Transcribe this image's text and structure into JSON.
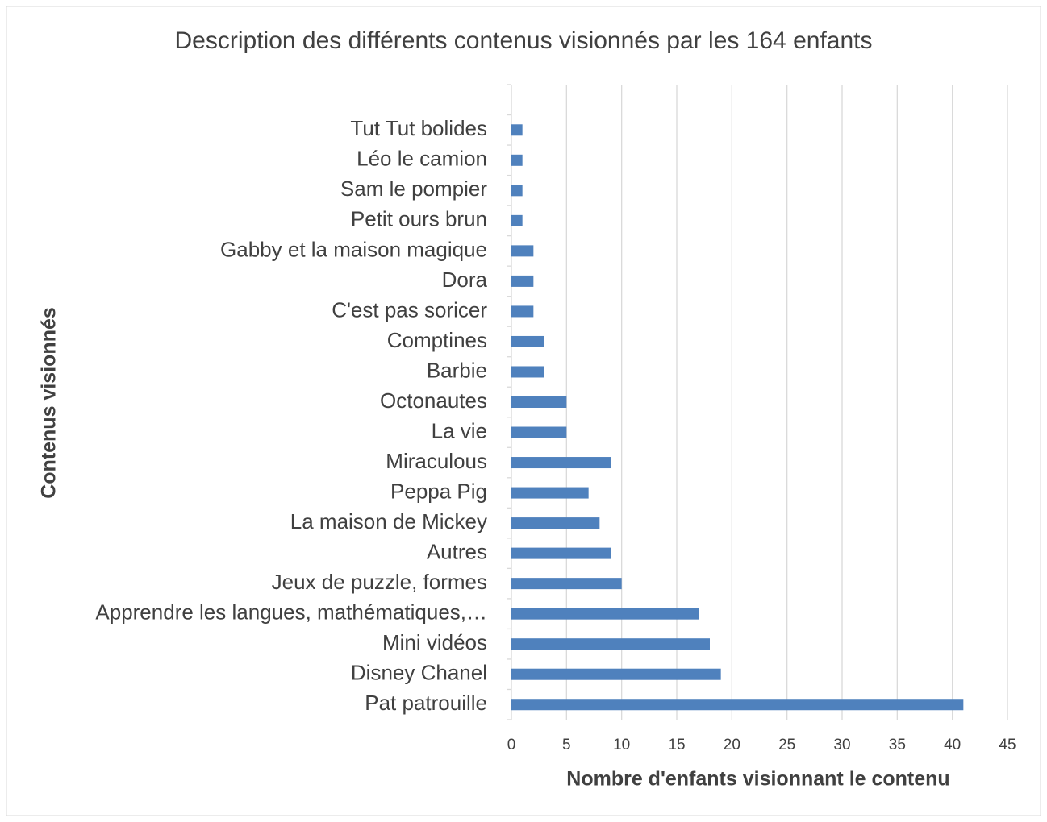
{
  "chart_data": {
    "type": "bar",
    "orientation": "horizontal",
    "title": "Description des différents contenus visionnés par les 164 enfants",
    "x_label": "Nombre d'enfants visionnant le contenu",
    "y_label": "Contenus visionnés",
    "categories": [
      null,
      "Tut Tut bolides",
      "Léo le camion",
      "Sam le pompier",
      "Petit ours brun",
      "Gabby et la maison magique",
      "Dora",
      "C'est pas soricer",
      "Comptines",
      "Barbie",
      "Octonautes",
      "La vie",
      "Miraculous",
      "Peppa Pig",
      "La maison de Mickey ",
      "Autres",
      "Jeux de puzzle, formes",
      "Apprendre les langues, mathématiques,…",
      "Mini vidéos ",
      "Disney Chanel",
      "Pat patrouille"
    ],
    "values": [
      null,
      1,
      1,
      1,
      1,
      2,
      2,
      2,
      3,
      3,
      5,
      5,
      9,
      7,
      8,
      9,
      10,
      17,
      18,
      19,
      41
    ],
    "color": "#4f81bd",
    "xlim": [
      0,
      45
    ],
    "xticks": [
      0,
      5,
      10,
      15,
      20,
      25,
      30,
      35,
      40,
      45
    ],
    "grid": true
  }
}
